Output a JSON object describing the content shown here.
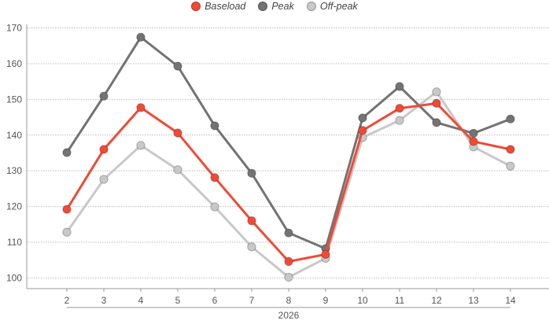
{
  "chart_data": {
    "type": "line",
    "x": [
      2,
      3,
      4,
      5,
      6,
      7,
      8,
      9,
      10,
      11,
      12,
      13,
      14
    ],
    "xlabel": "2026",
    "ylabel": "",
    "ylim": [
      97,
      171
    ],
    "yticks": [
      100,
      110,
      120,
      130,
      140,
      150,
      160,
      170
    ],
    "grid": true,
    "legend_position": "top-center",
    "series": [
      {
        "name": "Baseload",
        "color": "#f04a37",
        "values": [
          119.2,
          136.0,
          147.7,
          140.6,
          128.1,
          116.0,
          104.6,
          106.6,
          141.3,
          147.5,
          148.9,
          138.2,
          136.0
        ]
      },
      {
        "name": "Peak",
        "color": "#737373",
        "values": [
          135.1,
          150.9,
          167.4,
          159.3,
          142.6,
          129.3,
          112.6,
          108.2,
          144.8,
          153.6,
          143.5,
          140.5,
          144.5
        ]
      },
      {
        "name": "Off-peak",
        "color": "#c8c8c8",
        "values": [
          112.8,
          127.6,
          137.1,
          130.3,
          119.9,
          108.7,
          100.2,
          105.5,
          139.3,
          144.1,
          152.1,
          136.7,
          131.3
        ]
      }
    ]
  }
}
